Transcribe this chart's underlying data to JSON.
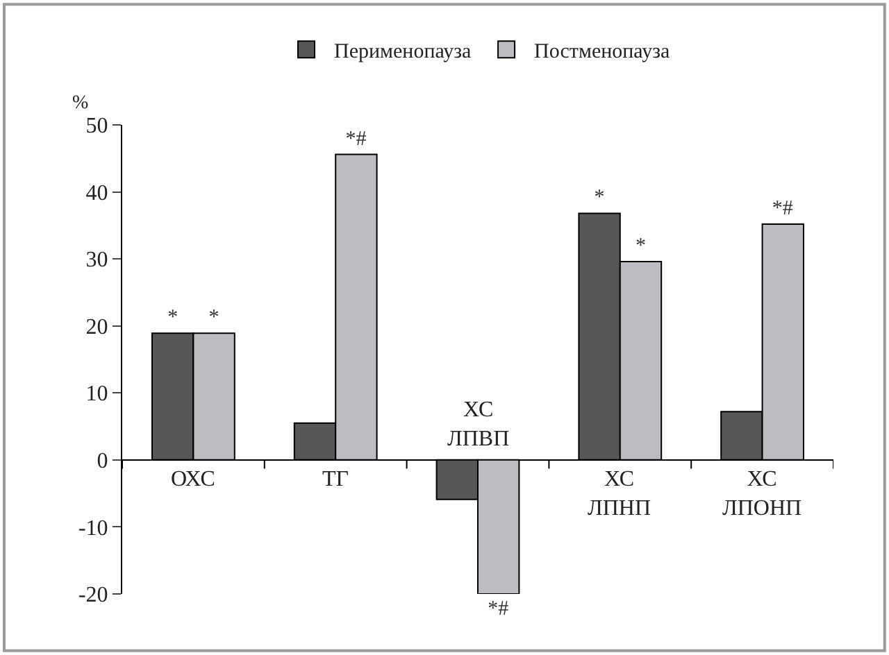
{
  "chart_data": {
    "type": "bar",
    "ylabel": "%",
    "categories": [
      "ОХС",
      "ТГ",
      "ХС ЛПВП",
      "ХС ЛПНП",
      "ХС ЛПОНП"
    ],
    "series": [
      {
        "name": "Перименопауза",
        "color": "#555759",
        "values": [
          18.9,
          5.5,
          -5.9,
          36.8,
          7.2
        ],
        "value_labels": [
          "*",
          null,
          null,
          "*",
          null
        ]
      },
      {
        "name": "Постменопауза",
        "color": "#bcbdc1",
        "values": [
          18.9,
          45.6,
          -20,
          29.6,
          35.2
        ],
        "value_labels": [
          "*",
          "*#",
          "*#",
          "*",
          "*#"
        ]
      }
    ],
    "ylim": [
      -20,
      50
    ],
    "yticks": [
      -20,
      -10,
      0,
      10,
      20,
      30,
      40,
      50
    ],
    "legend": "top"
  }
}
